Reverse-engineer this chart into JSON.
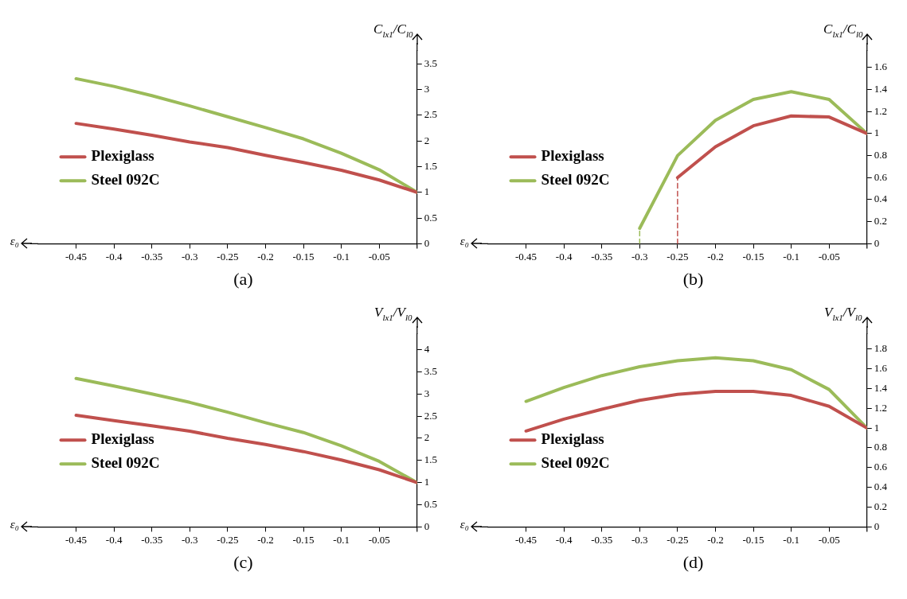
{
  "chart_data": [
    {
      "type": "line",
      "annotations": [
        "(a)"
      ],
      "xlabel": "ε₀",
      "ylabel": "C$_{lx1}$/C$_{l0}$",
      "legend": "left",
      "marker": "none",
      "line_style": "solid",
      "grid": false,
      "x": [
        -0.45,
        -0.4,
        -0.35,
        -0.3,
        -0.25,
        -0.2,
        -0.15,
        -0.1,
        -0.05,
        0
      ],
      "series": [
        {
          "name": "Plexiglass",
          "color": "#c0504d",
          "values": [
            2.34,
            2.23,
            2.11,
            1.98,
            1.87,
            1.72,
            1.58,
            1.43,
            1.24,
            1.0
          ]
        },
        {
          "name": "Steel 092C",
          "color": "#9bbb59",
          "values": [
            3.21,
            3.06,
            2.88,
            2.68,
            2.47,
            2.26,
            2.04,
            1.76,
            1.44,
            1.0
          ]
        }
      ],
      "xlim": [
        -0.5,
        0
      ],
      "xticks": [
        -0.45,
        -0.4,
        -0.35,
        -0.3,
        -0.25,
        -0.2,
        -0.15,
        -0.1,
        -0.05
      ],
      "ylim": [
        0,
        3.75
      ],
      "yticks": [
        0,
        0.5,
        1,
        1.5,
        2,
        2.5,
        3,
        3.5
      ]
    },
    {
      "type": "line",
      "annotations": [
        "(b)"
      ],
      "xlabel": "ε₀",
      "ylabel": "C$_{lx1}$/C$_{l0}$",
      "legend": "left",
      "marker": "none",
      "line_style": "solid",
      "grid": false,
      "series": [
        {
          "name": "Plexiglass",
          "color": "#c0504d",
          "x": [
            -0.25,
            -0.2,
            -0.15,
            -0.1,
            -0.05,
            0
          ],
          "values": [
            0.6,
            0.88,
            1.07,
            1.16,
            1.15,
            1.0
          ]
        },
        {
          "name": "Steel 092C",
          "color": "#9bbb59",
          "x": [
            -0.3,
            -0.25,
            -0.2,
            -0.15,
            -0.1,
            -0.05,
            0
          ],
          "values": [
            0.14,
            0.8,
            1.12,
            1.31,
            1.38,
            1.31,
            1.0
          ]
        },
        {
          "color": "#9bbb59",
          "line_style": "dashed",
          "x": [
            -0.3,
            -0.3
          ],
          "values": [
            0,
            0.14
          ]
        },
        {
          "color": "#c0504d",
          "line_style": "dashed",
          "x": [
            -0.25,
            -0.25
          ],
          "values": [
            0,
            0.6
          ]
        }
      ],
      "xlim": [
        -0.5,
        0
      ],
      "xticks": [
        -0.45,
        -0.4,
        -0.35,
        -0.3,
        -0.25,
        -0.2,
        -0.15,
        -0.1,
        -0.05
      ],
      "ylim": [
        0,
        1.75
      ],
      "yticks": [
        0,
        0.2,
        0.4,
        0.6,
        0.8,
        1,
        1.2,
        1.4,
        1.6
      ]
    },
    {
      "type": "line",
      "annotations": [
        "(c)"
      ],
      "xlabel": "ε₀",
      "ylabel": "V$_{lx1}$/V$_{l0}$",
      "legend": "left",
      "marker": "none",
      "line_style": "solid",
      "grid": false,
      "x": [
        -0.45,
        -0.4,
        -0.35,
        -0.3,
        -0.25,
        -0.2,
        -0.15,
        -0.1,
        -0.05,
        0
      ],
      "series": [
        {
          "name": "Plexiglass",
          "color": "#c0504d",
          "values": [
            2.52,
            2.4,
            2.28,
            2.16,
            2.0,
            1.86,
            1.7,
            1.51,
            1.29,
            1.0
          ]
        },
        {
          "name": "Steel 092C",
          "color": "#9bbb59",
          "values": [
            3.35,
            3.18,
            3.0,
            2.81,
            2.59,
            2.35,
            2.13,
            1.83,
            1.48,
            1.0
          ]
        }
      ],
      "xlim": [
        -0.5,
        0
      ],
      "xticks": [
        -0.45,
        -0.4,
        -0.35,
        -0.3,
        -0.25,
        -0.2,
        -0.15,
        -0.1,
        -0.05
      ],
      "ylim": [
        0,
        4.35
      ],
      "yticks": [
        0,
        0.5,
        1,
        1.5,
        2,
        2.5,
        3,
        3.5,
        4
      ]
    },
    {
      "type": "line",
      "annotations": [
        "(d)"
      ],
      "xlabel": "ε₀",
      "ylabel": "V$_{lx1}$/V$_{l0}$",
      "legend": "left",
      "marker": "none",
      "line_style": "solid",
      "grid": false,
      "x": [
        -0.45,
        -0.4,
        -0.35,
        -0.3,
        -0.25,
        -0.2,
        -0.15,
        -0.1,
        -0.05,
        0
      ],
      "series": [
        {
          "name": "Plexiglass",
          "color": "#c0504d",
          "values": [
            0.97,
            1.09,
            1.19,
            1.28,
            1.34,
            1.37,
            1.37,
            1.33,
            1.22,
            1.0
          ]
        },
        {
          "name": "Steel 092C",
          "color": "#9bbb59",
          "values": [
            1.27,
            1.41,
            1.53,
            1.62,
            1.68,
            1.71,
            1.68,
            1.59,
            1.39,
            1.0
          ]
        }
      ],
      "xlim": [
        -0.5,
        0
      ],
      "xticks": [
        -0.45,
        -0.4,
        -0.35,
        -0.3,
        -0.25,
        -0.2,
        -0.15,
        -0.1,
        -0.05
      ],
      "ylim": [
        0,
        1.95
      ],
      "yticks": [
        0,
        0.2,
        0.4,
        0.6,
        0.8,
        1,
        1.2,
        1.4,
        1.6,
        1.8
      ]
    }
  ]
}
